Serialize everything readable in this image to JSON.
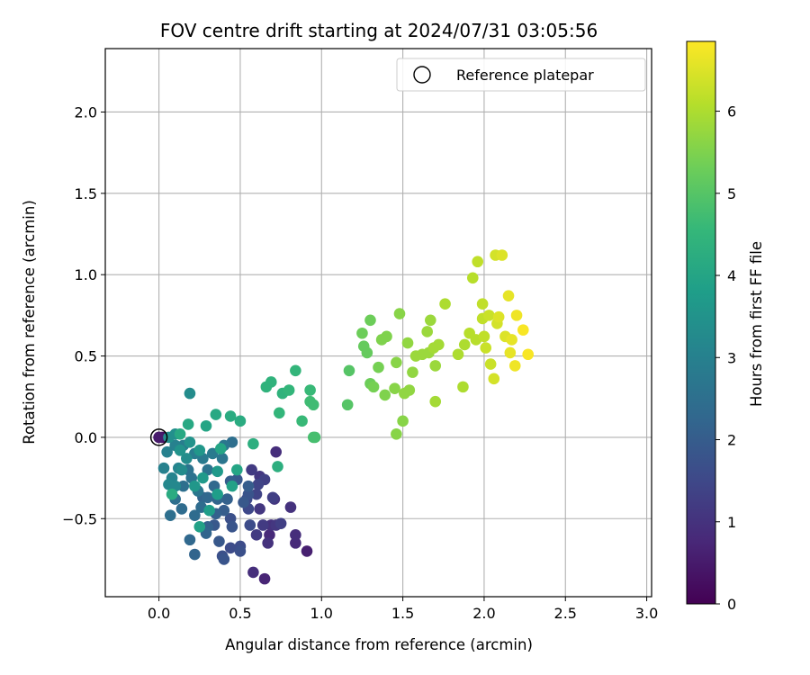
{
  "chart_data": {
    "type": "scatter",
    "title": "FOV centre drift starting at 2024/07/31 03:05:56",
    "xlabel": "Angular distance from reference (arcmin)",
    "ylabel": "Rotation from reference (arcmin)",
    "xlim": [
      -0.33,
      3.03
    ],
    "ylim": [
      -0.98,
      2.39
    ],
    "xticks": [
      0.0,
      0.5,
      1.0,
      1.5,
      2.0,
      2.5,
      3.0
    ],
    "xtick_labels": [
      "0.0",
      "0.5",
      "1.0",
      "1.5",
      "2.0",
      "2.5",
      "3.0"
    ],
    "yticks": [
      -0.5,
      0.0,
      0.5,
      1.0,
      1.5,
      2.0
    ],
    "ytick_labels": [
      "−0.5",
      "0.0",
      "0.5",
      "1.0",
      "1.5",
      "2.0"
    ],
    "grid": true,
    "legend": {
      "position": "top-right",
      "entries": [
        {
          "label": "Reference platepar",
          "marker": "open-circle"
        }
      ]
    },
    "reference_point": {
      "x": 0.0,
      "y": 0.0
    },
    "colorbar": {
      "label": "Hours from first FF file",
      "colormap": "viridis",
      "range": [
        0,
        6.85
      ],
      "ticks": [
        0,
        1,
        2,
        3,
        4,
        5,
        6
      ]
    },
    "points": [
      [
        0.0,
        0.0,
        0.0
      ],
      [
        0.02,
        0.0,
        0.3
      ],
      [
        0.0,
        0.0,
        0.5
      ],
      [
        0.65,
        -0.87,
        0.7
      ],
      [
        0.91,
        -0.7,
        0.6
      ],
      [
        0.58,
        -0.83,
        0.9
      ],
      [
        0.84,
        -0.65,
        0.8
      ],
      [
        0.84,
        -0.6,
        0.9
      ],
      [
        0.67,
        -0.65,
        1.0
      ],
      [
        0.68,
        -0.6,
        0.8
      ],
      [
        0.72,
        -0.09,
        0.9
      ],
      [
        0.81,
        -0.43,
        1.0
      ],
      [
        0.72,
        -0.54,
        1.1
      ],
      [
        0.69,
        -0.54,
        1.0
      ],
      [
        0.64,
        -0.54,
        1.2
      ],
      [
        0.62,
        -0.44,
        1.1
      ],
      [
        0.6,
        -0.6,
        1.2
      ],
      [
        0.62,
        -0.24,
        1.1
      ],
      [
        0.57,
        -0.2,
        1.2
      ],
      [
        0.71,
        -0.38,
        1.1
      ],
      [
        0.75,
        -0.53,
        1.3
      ],
      [
        0.7,
        -0.37,
        1.3
      ],
      [
        0.61,
        -0.29,
        1.4
      ],
      [
        0.65,
        -0.26,
        1.3
      ],
      [
        0.6,
        -0.35,
        1.4
      ],
      [
        0.54,
        -0.38,
        1.5
      ],
      [
        0.55,
        -0.44,
        1.5
      ],
      [
        0.56,
        -0.54,
        1.6
      ],
      [
        0.5,
        -0.67,
        1.6
      ],
      [
        0.5,
        -0.7,
        1.7
      ],
      [
        0.44,
        -0.68,
        1.6
      ],
      [
        0.39,
        -0.73,
        1.7
      ],
      [
        0.4,
        -0.75,
        1.8
      ],
      [
        0.44,
        -0.5,
        1.7
      ],
      [
        0.37,
        -0.64,
        1.9
      ],
      [
        0.34,
        -0.54,
        1.9
      ],
      [
        0.45,
        -0.55,
        1.8
      ],
      [
        0.55,
        -0.35,
        1.8
      ],
      [
        0.52,
        -0.4,
        1.9
      ],
      [
        0.55,
        -0.3,
        2.0
      ],
      [
        0.48,
        -0.26,
        1.9
      ],
      [
        0.44,
        -0.27,
        2.0
      ],
      [
        0.4,
        -0.45,
        2.0
      ],
      [
        0.35,
        -0.47,
        2.1
      ],
      [
        0.3,
        -0.55,
        2.1
      ],
      [
        0.29,
        -0.59,
        2.2
      ],
      [
        0.22,
        -0.72,
        2.2
      ],
      [
        0.19,
        -0.63,
        2.3
      ],
      [
        0.27,
        -0.37,
        2.2
      ],
      [
        0.42,
        -0.38,
        2.1
      ],
      [
        0.36,
        -0.38,
        2.2
      ],
      [
        0.34,
        -0.3,
        2.3
      ],
      [
        0.3,
        -0.37,
        2.3
      ],
      [
        0.26,
        -0.43,
        2.4
      ],
      [
        0.22,
        -0.48,
        2.4
      ],
      [
        0.14,
        -0.44,
        2.4
      ],
      [
        0.07,
        -0.48,
        2.5
      ],
      [
        0.1,
        -0.38,
        2.5
      ],
      [
        0.15,
        -0.3,
        2.5
      ],
      [
        0.18,
        -0.2,
        2.6
      ],
      [
        0.2,
        -0.25,
        2.6
      ],
      [
        0.24,
        -0.33,
        2.7
      ],
      [
        0.3,
        -0.2,
        2.6
      ],
      [
        0.39,
        -0.13,
        2.7
      ],
      [
        0.45,
        -0.03,
        2.5
      ],
      [
        0.4,
        -0.05,
        2.7
      ],
      [
        0.33,
        -0.1,
        2.8
      ],
      [
        0.27,
        -0.13,
        2.8
      ],
      [
        0.22,
        -0.1,
        2.9
      ],
      [
        0.15,
        -0.05,
        2.9
      ],
      [
        0.1,
        -0.05,
        3.0
      ],
      [
        0.05,
        -0.09,
        3.0
      ],
      [
        0.03,
        -0.19,
        3.0
      ],
      [
        0.08,
        -0.25,
        3.1
      ],
      [
        0.12,
        -0.19,
        3.1
      ],
      [
        0.06,
        -0.29,
        3.2
      ],
      [
        0.1,
        -0.3,
        3.2
      ],
      [
        0.14,
        -0.2,
        3.3
      ],
      [
        0.17,
        -0.13,
        3.3
      ],
      [
        0.19,
        0.27,
        3.3
      ],
      [
        0.06,
        0.0,
        3.4
      ],
      [
        0.1,
        0.02,
        3.4
      ],
      [
        0.13,
        -0.08,
        3.5
      ],
      [
        0.19,
        -0.03,
        3.5
      ],
      [
        0.25,
        -0.08,
        3.6
      ],
      [
        0.22,
        -0.3,
        3.6
      ],
      [
        0.27,
        -0.25,
        3.7
      ],
      [
        0.36,
        -0.21,
        3.7
      ],
      [
        0.36,
        -0.35,
        3.8
      ],
      [
        0.31,
        -0.45,
        3.8
      ],
      [
        0.25,
        -0.55,
        3.9
      ],
      [
        0.45,
        -0.3,
        3.9
      ],
      [
        0.48,
        -0.2,
        4.0
      ],
      [
        0.38,
        -0.07,
        4.0
      ],
      [
        0.29,
        0.07,
        4.0
      ],
      [
        0.35,
        0.14,
        4.1
      ],
      [
        0.18,
        0.08,
        4.1
      ],
      [
        0.13,
        0.02,
        4.1
      ],
      [
        0.08,
        -0.35,
        4.2
      ],
      [
        0.5,
        0.1,
        4.2
      ],
      [
        0.44,
        0.13,
        4.2
      ],
      [
        0.58,
        -0.04,
        4.3
      ],
      [
        0.73,
        -0.18,
        4.3
      ],
      [
        0.66,
        0.31,
        4.4
      ],
      [
        0.69,
        0.34,
        4.4
      ],
      [
        0.76,
        0.27,
        4.4
      ],
      [
        0.8,
        0.29,
        4.5
      ],
      [
        0.84,
        0.41,
        4.5
      ],
      [
        0.74,
        0.15,
        4.5
      ],
      [
        0.88,
        0.1,
        4.6
      ],
      [
        0.93,
        0.29,
        4.6
      ],
      [
        0.93,
        0.22,
        4.7
      ],
      [
        0.95,
        0.2,
        4.7
      ],
      [
        0.95,
        0.0,
        4.8
      ],
      [
        0.96,
        0.0,
        4.8
      ],
      [
        1.16,
        0.2,
        5.0
      ],
      [
        1.17,
        0.41,
        5.0
      ],
      [
        1.26,
        0.56,
        5.2
      ],
      [
        1.28,
        0.52,
        5.2
      ],
      [
        1.25,
        0.64,
        5.3
      ],
      [
        1.3,
        0.72,
        5.3
      ],
      [
        1.3,
        0.33,
        5.3
      ],
      [
        1.32,
        0.31,
        5.4
      ],
      [
        1.35,
        0.43,
        5.4
      ],
      [
        1.37,
        0.6,
        5.5
      ],
      [
        1.4,
        0.62,
        5.5
      ],
      [
        1.39,
        0.26,
        5.5
      ],
      [
        1.45,
        0.3,
        5.6
      ],
      [
        1.46,
        0.46,
        5.6
      ],
      [
        1.46,
        0.02,
        5.6
      ],
      [
        1.5,
        0.1,
        5.6
      ],
      [
        1.48,
        0.76,
        5.6
      ],
      [
        1.51,
        0.27,
        5.7
      ],
      [
        1.54,
        0.29,
        5.7
      ],
      [
        1.53,
        0.58,
        5.7
      ],
      [
        1.56,
        0.4,
        5.7
      ],
      [
        1.58,
        0.5,
        5.8
      ],
      [
        1.62,
        0.51,
        5.8
      ],
      [
        1.65,
        0.65,
        5.8
      ],
      [
        1.67,
        0.72,
        5.8
      ],
      [
        1.69,
        0.55,
        5.9
      ],
      [
        1.7,
        0.22,
        5.9
      ],
      [
        1.72,
        0.57,
        5.9
      ],
      [
        1.76,
        0.82,
        6.0
      ],
      [
        1.84,
        0.51,
        6.0
      ],
      [
        1.87,
        0.31,
        6.0
      ],
      [
        1.88,
        0.57,
        6.0
      ],
      [
        1.91,
        0.64,
        6.1
      ],
      [
        1.93,
        0.98,
        6.1
      ],
      [
        1.95,
        0.6,
        6.1
      ],
      [
        1.96,
        1.08,
        6.2
      ],
      [
        1.99,
        0.82,
        6.2
      ],
      [
        1.99,
        0.73,
        6.2
      ],
      [
        2.01,
        0.55,
        6.3
      ],
      [
        2.03,
        0.75,
        6.3
      ],
      [
        2.04,
        0.45,
        6.3
      ],
      [
        2.06,
        0.36,
        6.4
      ],
      [
        2.07,
        1.12,
        6.4
      ],
      [
        2.08,
        0.7,
        6.4
      ],
      [
        2.09,
        0.74,
        6.5
      ],
      [
        2.11,
        1.12,
        6.5
      ],
      [
        2.13,
        0.62,
        6.5
      ],
      [
        2.15,
        0.87,
        6.6
      ],
      [
        2.16,
        0.52,
        6.6
      ],
      [
        2.17,
        0.6,
        6.6
      ],
      [
        2.19,
        0.44,
        6.7
      ],
      [
        2.2,
        0.75,
        6.7
      ],
      [
        2.24,
        0.66,
        6.8
      ],
      [
        2.27,
        0.51,
        6.8
      ],
      [
        1.66,
        0.52,
        5.8
      ],
      [
        1.7,
        0.44,
        5.8
      ],
      [
        2.0,
        0.62,
        6.2
      ]
    ]
  }
}
